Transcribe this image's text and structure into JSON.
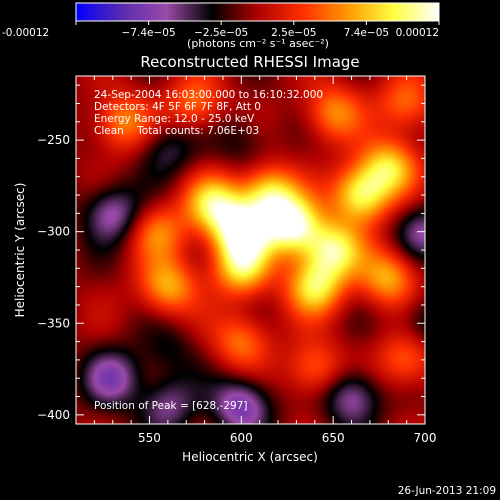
{
  "chart_data": {
    "type": "heatmap",
    "title": "Reconstructed RHESSI Image",
    "xlabel": "Heliocentric X (arcsec)",
    "ylabel": "Heliocentric Y (arcsec)",
    "xlim": [
      510,
      700
    ],
    "ylim": [
      -405,
      -215
    ],
    "x_ticks": [
      550,
      600,
      650,
      700
    ],
    "x_tick_labels": [
      "550",
      "600",
      "650",
      "700"
    ],
    "y_ticks": [
      -250,
      -300,
      -350,
      -400
    ],
    "y_tick_labels": [
      "−250",
      "−300",
      "−350",
      "−400"
    ],
    "colorbar": {
      "min": -0.00012,
      "max": 0.00012,
      "tick_labels": [
        "-0.00012",
        "−7.4e−05",
        "−2.5e−05",
        "2.5e−05",
        "7.4e−05",
        "0.00012"
      ],
      "unit_label": "(photons cm⁻² s⁻¹ asec⁻²)",
      "colors": [
        "#0000ff",
        "#5a2ab0",
        "#9a4aa8",
        "#000000",
        "#b00000",
        "#ff3000",
        "#ff9a00",
        "#ffff40",
        "#ffffff"
      ]
    },
    "annotations": [
      "24-Sep-2004 16:03:00.000 to 16:10:32.000",
      "Detectors: 4F 5F 6F 7F 8F, Att 0",
      "Energy Range: 12.0 - 25.0 keV",
      "Clean    Total counts: 7.06E+03",
      "Position of Peak = [628,-297]"
    ],
    "sources": [
      {
        "x": 600,
        "y": -300,
        "intensity": 1.0
      },
      {
        "x": 628,
        "y": -297,
        "intensity": 1.0
      },
      {
        "x": 615,
        "y": -280,
        "intensity": 0.8
      },
      {
        "x": 585,
        "y": -285,
        "intensity": 0.75
      },
      {
        "x": 600,
        "y": -320,
        "intensity": 0.7
      },
      {
        "x": 650,
        "y": -310,
        "intensity": 0.8
      },
      {
        "x": 665,
        "y": -280,
        "intensity": 0.85
      },
      {
        "x": 680,
        "y": -265,
        "intensity": 0.7
      },
      {
        "x": 640,
        "y": -330,
        "intensity": 0.75
      },
      {
        "x": 560,
        "y": -330,
        "intensity": 0.6
      },
      {
        "x": 555,
        "y": -300,
        "intensity": 0.45
      },
      {
        "x": 680,
        "y": -325,
        "intensity": 0.6
      },
      {
        "x": 535,
        "y": -240,
        "intensity": 0.5
      },
      {
        "x": 575,
        "y": -230,
        "intensity": 0.45
      },
      {
        "x": 650,
        "y": -235,
        "intensity": 0.5
      },
      {
        "x": 690,
        "y": -230,
        "intensity": 0.45
      },
      {
        "x": 600,
        "y": -360,
        "intensity": 0.45
      },
      {
        "x": 640,
        "y": -375,
        "intensity": 0.45
      },
      {
        "x": 690,
        "y": -370,
        "intensity": 0.45
      },
      {
        "x": 530,
        "y": -290,
        "intensity": -0.5
      },
      {
        "x": 560,
        "y": -255,
        "intensity": -0.3
      },
      {
        "x": 530,
        "y": -380,
        "intensity": -0.5
      },
      {
        "x": 560,
        "y": -395,
        "intensity": -0.4
      },
      {
        "x": 600,
        "y": -395,
        "intensity": -0.6
      },
      {
        "x": 660,
        "y": -390,
        "intensity": -0.5
      },
      {
        "x": 700,
        "y": -300,
        "intensity": -0.4
      },
      {
        "x": 600,
        "y": -250,
        "intensity": -0.2
      },
      {
        "x": 560,
        "y": -365,
        "intensity": -0.2
      },
      {
        "x": 700,
        "y": -350,
        "intensity": -0.3
      }
    ]
  },
  "timestamp": "26-Jun-2013 21:09"
}
